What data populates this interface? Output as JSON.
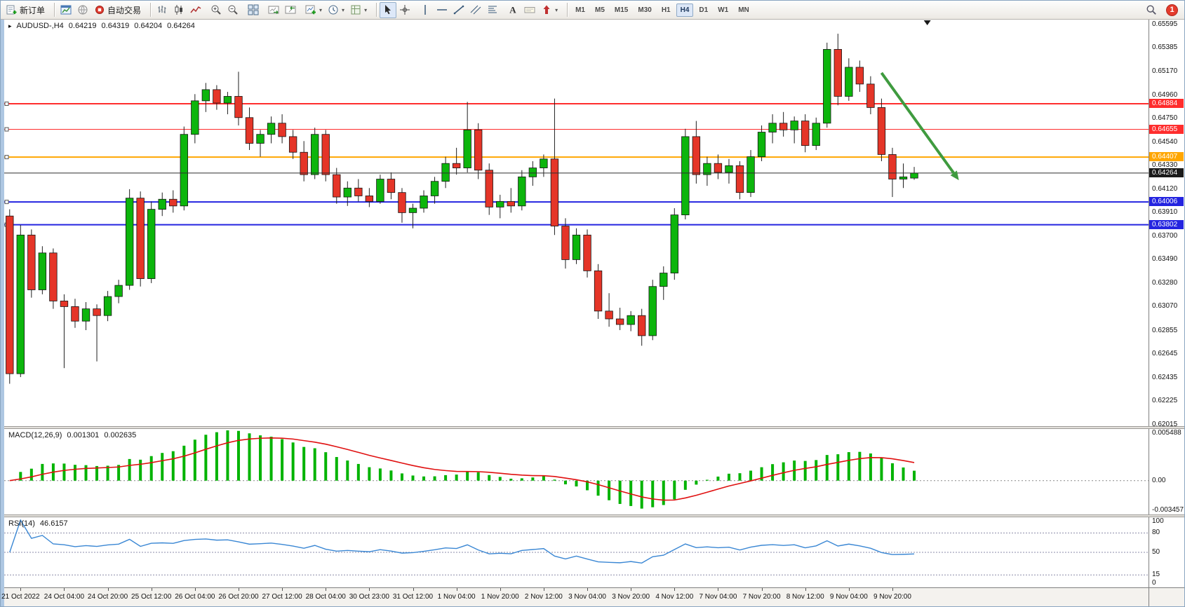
{
  "toolbar": {
    "groups": [
      {
        "sep": false,
        "items": [
          {
            "name": "new-order",
            "icon": "new-order-icon",
            "label": "新订单"
          }
        ]
      },
      {
        "sep": true,
        "items": [
          {
            "name": "charts-window",
            "icon": "chart-window-icon"
          },
          {
            "name": "community",
            "icon": "globe-icon"
          },
          {
            "name": "auto-trading",
            "icon": "autotrade-icon",
            "label": "自动交易"
          }
        ]
      },
      {
        "sep": true,
        "items": [
          {
            "name": "bar-chart-mode",
            "icon": "bars-icon"
          },
          {
            "name": "candle-chart-mode",
            "icon": "candles-icon"
          },
          {
            "name": "line-chart-mode",
            "icon": "line-chart-icon"
          }
        ]
      },
      {
        "sep": false,
        "items": [
          {
            "name": "zoom-in",
            "icon": "zoom-in-icon"
          },
          {
            "name": "zoom-out",
            "icon": "zoom-out-icon"
          }
        ]
      },
      {
        "sep": false,
        "items": [
          {
            "name": "tile-windows",
            "icon": "tile-windows-icon"
          }
        ]
      },
      {
        "sep": false,
        "items": [
          {
            "name": "auto-scroll",
            "icon": "auto-scroll-icon"
          },
          {
            "name": "chart-shift",
            "icon": "chart-shift-icon"
          }
        ]
      },
      {
        "sep": false,
        "items": [
          {
            "name": "new-chart",
            "icon": "new-chart-icon",
            "caret": true
          },
          {
            "name": "periods",
            "icon": "clock-icon",
            "caret": true
          },
          {
            "name": "templates",
            "icon": "template-icon",
            "caret": true
          }
        ]
      },
      {
        "sep": true,
        "items": [
          {
            "name": "cursor",
            "icon": "cursor-icon",
            "active": true
          },
          {
            "name": "crosshair",
            "icon": "crosshair-icon"
          }
        ]
      },
      {
        "sep": false,
        "items": [
          {
            "name": "vertical-line",
            "icon": "vline-icon"
          },
          {
            "name": "horizontal-line",
            "icon": "hline-icon"
          },
          {
            "name": "trendline",
            "icon": "trendline-icon"
          },
          {
            "name": "equidistant-channel",
            "icon": "channel-icon"
          },
          {
            "name": "fibonacci-retracement",
            "icon": "fibo-icon"
          }
        ]
      },
      {
        "sep": false,
        "items": [
          {
            "name": "text",
            "icon": "text-icon"
          },
          {
            "name": "text-label",
            "icon": "label-icon"
          },
          {
            "name": "arrows",
            "icon": "arrow-shape-icon",
            "caret": true
          }
        ]
      }
    ],
    "timeframes": {
      "items": [
        "M1",
        "M5",
        "M15",
        "M30",
        "H1",
        "H4",
        "D1",
        "W1",
        "MN"
      ],
      "active": "H4"
    },
    "right_items": [
      {
        "name": "search",
        "icon": "search-icon"
      },
      {
        "name": "notifications",
        "icon": "notification-badge-icon",
        "badge": "1"
      }
    ]
  },
  "chart": {
    "header": {
      "toggle": "▸",
      "symbol": "AUDUSD-,H4",
      "open": "0.64219",
      "high": "0.64319",
      "low": "0.64204",
      "close": "0.64264"
    },
    "price_axis": {
      "min": 0.62001,
      "max": 0.65636,
      "labels": [
        "0.65595",
        "0.65385",
        "0.65170",
        "0.64960",
        "0.64750",
        "0.64540",
        "0.64330",
        "0.64120",
        "0.63910",
        "0.63700",
        "0.63490",
        "0.63280",
        "0.63070",
        "0.62855",
        "0.62645",
        "0.62435",
        "0.62225",
        "0.62015"
      ]
    },
    "hlines": [
      {
        "name": "resistance-line-1",
        "value": 0.64884,
        "label": "0.64884",
        "color": "#ff2d2d",
        "width": 2,
        "anchor": true
      },
      {
        "name": "resistance-line-2",
        "value": 0.64655,
        "label": "0.64655",
        "color": "#ff2d2d",
        "width": 1,
        "anchor": true
      },
      {
        "name": "pivot-line",
        "value": 0.64407,
        "label": "0.64407",
        "color": "#ffa600",
        "width": 2,
        "anchor": true
      },
      {
        "name": "bid-line",
        "value": 0.64264,
        "label": "0.64264",
        "color": "#2e2e2e",
        "width": 1,
        "tag_bg": "#1a1a1a",
        "above": true
      },
      {
        "name": "support-line-1",
        "value": 0.64006,
        "label": "0.64006",
        "color": "#2424e0",
        "width": 2,
        "anchor": true
      },
      {
        "name": "support-line-2",
        "value": 0.63802,
        "label": "0.63802",
        "color": "#2424e0",
        "width": 2,
        "anchor": true
      }
    ],
    "arrow": {
      "bar1": 80,
      "price1": 0.6516,
      "bar2": 87.1,
      "price2": 0.642,
      "color": "#3f9b3f"
    },
    "shift_marker_bar": 84.2,
    "right_padding_bars": 21,
    "colors": {
      "up": "#0cb50c",
      "down": "#e53528",
      "wick": "#202020",
      "outline": "#151515"
    }
  },
  "chart_data": {
    "type": "candlestick",
    "symbol": "AUDUSD",
    "period": "H4",
    "time_labels": [
      "21 Oct 2022",
      "24 Oct 04:00",
      "24 Oct 20:00",
      "25 Oct 12:00",
      "26 Oct 04:00",
      "26 Oct 20:00",
      "27 Oct 12:00",
      "28 Oct 04:00",
      "30 Oct 23:00",
      "31 Oct 12:00",
      "1 Nov 04:00",
      "1 Nov 20:00",
      "2 Nov 12:00",
      "3 Nov 04:00",
      "3 Nov 20:00",
      "4 Nov 12:00",
      "7 Nov 04:00",
      "7 Nov 20:00",
      "8 Nov 12:00",
      "9 Nov 04:00",
      "9 Nov 20:00"
    ],
    "label_start_index": 1,
    "label_step": 4,
    "candles": [
      [
        0.6388,
        0.6394,
        0.6238,
        0.6247
      ],
      [
        0.6247,
        0.638,
        0.6244,
        0.6371
      ],
      [
        0.6371,
        0.6376,
        0.6315,
        0.6322
      ],
      [
        0.6322,
        0.6361,
        0.6318,
        0.6355
      ],
      [
        0.6355,
        0.6359,
        0.6305,
        0.6312
      ],
      [
        0.6312,
        0.6318,
        0.6252,
        0.6307
      ],
      [
        0.6307,
        0.6314,
        0.6288,
        0.6294
      ],
      [
        0.6294,
        0.6311,
        0.6286,
        0.6305
      ],
      [
        0.6305,
        0.6309,
        0.6258,
        0.6299
      ],
      [
        0.6299,
        0.6321,
        0.6294,
        0.6316
      ],
      [
        0.6316,
        0.6331,
        0.631,
        0.6326
      ],
      [
        0.6326,
        0.6412,
        0.6322,
        0.6404
      ],
      [
        0.6404,
        0.641,
        0.6325,
        0.6332
      ],
      [
        0.6332,
        0.6401,
        0.6328,
        0.6394
      ],
      [
        0.6394,
        0.6409,
        0.6388,
        0.6403
      ],
      [
        0.6403,
        0.6411,
        0.6391,
        0.6397
      ],
      [
        0.6397,
        0.6468,
        0.6393,
        0.6461
      ],
      [
        0.6461,
        0.6497,
        0.6453,
        0.6491
      ],
      [
        0.6491,
        0.6507,
        0.6481,
        0.6501
      ],
      [
        0.6501,
        0.6505,
        0.6483,
        0.6489
      ],
      [
        0.6489,
        0.6499,
        0.6479,
        0.6495
      ],
      [
        0.6495,
        0.6517,
        0.6469,
        0.6476
      ],
      [
        0.6476,
        0.6485,
        0.6447,
        0.6453
      ],
      [
        0.6453,
        0.6465,
        0.6441,
        0.6461
      ],
      [
        0.6461,
        0.6477,
        0.6453,
        0.6471
      ],
      [
        0.6471,
        0.6479,
        0.6453,
        0.6459
      ],
      [
        0.6459,
        0.6465,
        0.6439,
        0.6445
      ],
      [
        0.6445,
        0.6455,
        0.6419,
        0.6425
      ],
      [
        0.6425,
        0.6467,
        0.6421,
        0.6461
      ],
      [
        0.6461,
        0.6465,
        0.6419,
        0.6425
      ],
      [
        0.6425,
        0.6431,
        0.6399,
        0.6405
      ],
      [
        0.6405,
        0.6419,
        0.6397,
        0.6413
      ],
      [
        0.6413,
        0.6421,
        0.6401,
        0.6406
      ],
      [
        0.6406,
        0.6413,
        0.6396,
        0.6401
      ],
      [
        0.6401,
        0.6425,
        0.6399,
        0.6421
      ],
      [
        0.6421,
        0.6427,
        0.6403,
        0.6409
      ],
      [
        0.6409,
        0.6413,
        0.6382,
        0.6391
      ],
      [
        0.6391,
        0.6399,
        0.6377,
        0.6395
      ],
      [
        0.6395,
        0.6411,
        0.6391,
        0.6406
      ],
      [
        0.6406,
        0.6423,
        0.6399,
        0.6419
      ],
      [
        0.6419,
        0.6441,
        0.6413,
        0.6435
      ],
      [
        0.6435,
        0.6449,
        0.6425,
        0.6431
      ],
      [
        0.6431,
        0.649,
        0.6427,
        0.6465
      ],
      [
        0.6465,
        0.6471,
        0.6421,
        0.6429
      ],
      [
        0.6429,
        0.6435,
        0.6389,
        0.6396
      ],
      [
        0.6396,
        0.6407,
        0.6386,
        0.6401
      ],
      [
        0.6401,
        0.6413,
        0.6391,
        0.6397
      ],
      [
        0.6397,
        0.6429,
        0.6393,
        0.6423
      ],
      [
        0.6423,
        0.6437,
        0.6415,
        0.6431
      ],
      [
        0.6431,
        0.6443,
        0.6423,
        0.6439
      ],
      [
        0.6439,
        0.6493,
        0.6371,
        0.6379
      ],
      [
        0.6379,
        0.6386,
        0.6341,
        0.6349
      ],
      [
        0.6349,
        0.6377,
        0.6345,
        0.6371
      ],
      [
        0.6371,
        0.6376,
        0.6333,
        0.6339
      ],
      [
        0.6339,
        0.6345,
        0.6296,
        0.6303
      ],
      [
        0.6303,
        0.6319,
        0.6289,
        0.6296
      ],
      [
        0.6296,
        0.6306,
        0.6286,
        0.6291
      ],
      [
        0.6291,
        0.6303,
        0.6285,
        0.6299
      ],
      [
        0.6299,
        0.6305,
        0.6272,
        0.6281
      ],
      [
        0.6281,
        0.6331,
        0.6277,
        0.6325
      ],
      [
        0.6325,
        0.6343,
        0.6313,
        0.6337
      ],
      [
        0.6337,
        0.6395,
        0.6331,
        0.6389
      ],
      [
        0.6389,
        0.6466,
        0.6385,
        0.6459
      ],
      [
        0.6459,
        0.6473,
        0.6417,
        0.6425
      ],
      [
        0.6425,
        0.6441,
        0.6415,
        0.6435
      ],
      [
        0.6435,
        0.6443,
        0.6421,
        0.6427
      ],
      [
        0.6427,
        0.6439,
        0.6417,
        0.6433
      ],
      [
        0.6433,
        0.6437,
        0.6403,
        0.6409
      ],
      [
        0.6409,
        0.6447,
        0.6405,
        0.6441
      ],
      [
        0.6441,
        0.6469,
        0.6437,
        0.6463
      ],
      [
        0.6463,
        0.6479,
        0.6453,
        0.6471
      ],
      [
        0.6471,
        0.6481,
        0.6459,
        0.6465
      ],
      [
        0.6465,
        0.6477,
        0.6453,
        0.6473
      ],
      [
        0.6473,
        0.6479,
        0.6445,
        0.6451
      ],
      [
        0.6451,
        0.6476,
        0.6447,
        0.6471
      ],
      [
        0.6471,
        0.6543,
        0.6467,
        0.6537
      ],
      [
        0.6537,
        0.6551,
        0.6487,
        0.6495
      ],
      [
        0.6495,
        0.6529,
        0.6491,
        0.6521
      ],
      [
        0.6521,
        0.6527,
        0.6499,
        0.6506
      ],
      [
        0.6506,
        0.6513,
        0.6479,
        0.6485
      ],
      [
        0.6485,
        0.6493,
        0.6437,
        0.6443
      ],
      [
        0.6443,
        0.6449,
        0.6405,
        0.6421
      ],
      [
        0.6421,
        0.6435,
        0.6413,
        0.6423
      ],
      [
        0.64219,
        0.64319,
        0.64204,
        0.64264
      ]
    ]
  },
  "macd": {
    "label": "MACD(12,26,9)",
    "value_main": "0.001301",
    "value_signal": "0.002635",
    "axis_labels": [
      "0.005488",
      "0.00",
      "-0.003457"
    ],
    "max": 0.005488,
    "min": -0.003457,
    "fast": 12,
    "slow": 26,
    "signal": 9,
    "colors": {
      "histogram": "#00b300",
      "signal_line": "#e01010",
      "zero_line": "#888888"
    }
  },
  "rsi": {
    "label": "RSI(14)",
    "value": "46.6157",
    "period": 14,
    "axis_labels": [
      "100",
      "80",
      "50",
      "15",
      "0"
    ],
    "levels": [
      80,
      50,
      15
    ],
    "colors": {
      "line": "#3a87d4",
      "level_line": "#8a8aa8"
    }
  }
}
